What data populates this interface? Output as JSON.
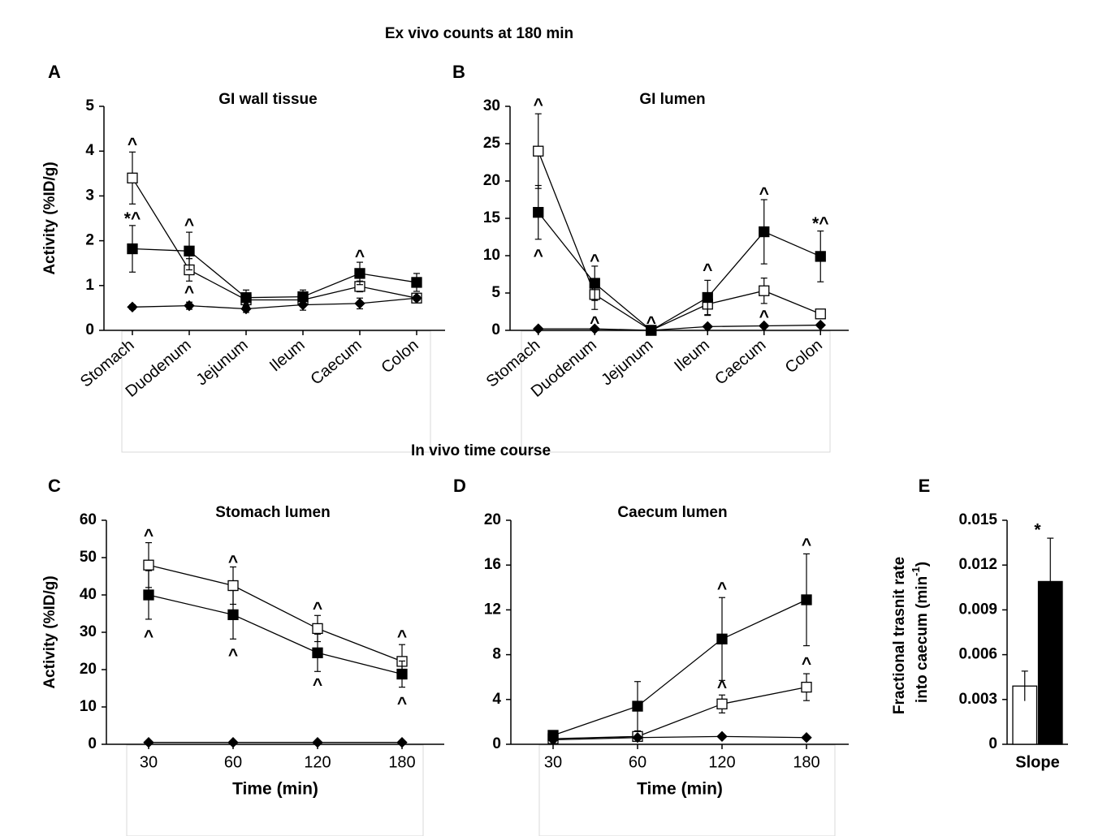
{
  "headers": [
    "Ex vivo counts at 180 min",
    "In vivo time course"
  ],
  "chart_data": [
    {
      "type": "line",
      "letter": "A",
      "title": "GI wall tissue",
      "ylabel": "Activity (%ID/g)",
      "categories": [
        "Stomach",
        "Duodenum",
        "Jejunum",
        "Ileum",
        "Caecum",
        "Colon"
      ],
      "xtick_rotation": -40,
      "ylim": [
        0,
        5
      ],
      "yticks": [
        0,
        1,
        2,
        3,
        4,
        5
      ],
      "series": [
        {
          "color": "#ffffff",
          "marker": "square",
          "values": [
            3.4,
            1.35,
            0.68,
            0.68,
            0.98,
            0.72
          ],
          "errors": [
            0.58,
            0.25,
            0.1,
            0.1,
            0.12,
            0.05
          ]
        },
        {
          "color": "#000000",
          "marker": "square",
          "values": [
            1.82,
            1.77,
            0.73,
            0.75,
            1.27,
            1.07
          ],
          "errors": [
            0.52,
            0.42,
            0.17,
            0.15,
            0.25,
            0.2
          ]
        },
        {
          "color": "#000000",
          "marker": "diamond",
          "values": [
            0.52,
            0.55,
            0.48,
            0.57,
            0.6,
            0.72
          ],
          "errors": [
            0.05,
            0.08,
            0.08,
            0.12,
            0.12,
            0.05
          ]
        }
      ],
      "annotations": [
        {
          "text": "^",
          "x": "Stomach",
          "y": 4.2
        },
        {
          "text": "*^",
          "x": "Stomach",
          "y": 2.55
        },
        {
          "text": "^",
          "x": "Duodenum",
          "y": 2.4
        },
        {
          "text": "^",
          "x": "Duodenum",
          "y": 0.9
        },
        {
          "text": "^",
          "x": "Jejunum",
          "y": 0.55
        },
        {
          "text": "^",
          "x": "Caecum",
          "y": 1.7
        }
      ]
    },
    {
      "type": "line",
      "letter": "B",
      "title": "GI lumen",
      "categories": [
        "Stomach",
        "Duodenum",
        "Jejunum",
        "Ileum",
        "Caecum",
        "Colon"
      ],
      "xtick_rotation": -40,
      "ylim": [
        0,
        30
      ],
      "yticks": [
        0,
        5,
        10,
        15,
        20,
        25,
        30
      ],
      "series": [
        {
          "color": "#ffffff",
          "marker": "square",
          "values": [
            24,
            4.8,
            0,
            3.5,
            5.3,
            2.2
          ],
          "errors": [
            5,
            2,
            0,
            1.5,
            1.7,
            0.6
          ]
        },
        {
          "color": "#000000",
          "marker": "square",
          "values": [
            15.8,
            6.3,
            0,
            4.4,
            13.2,
            9.9
          ],
          "errors": [
            3.6,
            2.3,
            0,
            2.3,
            4.3,
            3.4
          ]
        },
        {
          "color": "#000000",
          "marker": "diamond",
          "values": [
            0.2,
            0.2,
            0,
            0.5,
            0.6,
            0.7
          ]
        }
      ],
      "annotations": [
        {
          "text": "^",
          "x": "Stomach",
          "y": 30.5
        },
        {
          "text": "^",
          "x": "Stomach",
          "y": 10.3
        },
        {
          "text": "^",
          "x": "Duodenum",
          "y": 9.6
        },
        {
          "text": "^",
          "x": "Duodenum",
          "y": 1.3
        },
        {
          "text": "^",
          "x": "Jejunum",
          "y": 1.3
        },
        {
          "text": "^",
          "x": "Ileum",
          "y": 8.4
        },
        {
          "text": "^",
          "x": "Caecum",
          "y": 18.6
        },
        {
          "text": "^",
          "x": "Caecum",
          "y": 2.1
        },
        {
          "text": "*^",
          "x": "Colon",
          "y": 14.6
        }
      ]
    },
    {
      "type": "line",
      "letter": "C",
      "title": "Stomach lumen",
      "ylabel": "Activity (%ID/g)",
      "xlabel": "Time (min)",
      "categories": [
        "30",
        "60",
        "120",
        "180"
      ],
      "ylim": [
        0,
        60
      ],
      "yticks": [
        0,
        10,
        20,
        30,
        40,
        50,
        60
      ],
      "series": [
        {
          "color": "#ffffff",
          "marker": "square",
          "values": [
            48,
            42.5,
            31,
            22.2
          ],
          "errors": [
            6,
            5,
            3.5,
            4.5
          ]
        },
        {
          "color": "#000000",
          "marker": "square",
          "values": [
            40,
            34.7,
            24.5,
            18.8
          ],
          "errors": [
            6.5,
            6.5,
            5,
            3.5
          ]
        },
        {
          "color": "#000000",
          "marker": "diamond",
          "values": [
            0.5,
            0.5,
            0.5,
            0.5
          ]
        }
      ],
      "annotations": [
        {
          "text": "^",
          "x": "30",
          "y": 56.5
        },
        {
          "text": "^",
          "x": "30",
          "y": 29.5
        },
        {
          "text": "^",
          "x": "60",
          "y": 49.5
        },
        {
          "text": "^",
          "x": "60",
          "y": 24.5
        },
        {
          "text": "^",
          "x": "120",
          "y": 37
        },
        {
          "text": "^",
          "x": "120",
          "y": 16.5
        },
        {
          "text": "^",
          "x": "180",
          "y": 29.5
        },
        {
          "text": "^",
          "x": "180",
          "y": 11.5
        }
      ]
    },
    {
      "type": "line",
      "letter": "D",
      "title": "Caecum lumen",
      "xlabel": "Time (min)",
      "categories": [
        "30",
        "60",
        "120",
        "180"
      ],
      "ylim": [
        0,
        20
      ],
      "yticks": [
        0,
        4,
        8,
        12,
        16,
        20
      ],
      "series": [
        {
          "color": "#ffffff",
          "marker": "square",
          "values": [
            0.5,
            0.7,
            3.6,
            5.1
          ],
          "errors": [
            0,
            0.2,
            0.8,
            1.2
          ]
        },
        {
          "color": "#000000",
          "marker": "square",
          "values": [
            0.8,
            3.4,
            9.4,
            12.9
          ],
          "errors": [
            0.2,
            2.2,
            3.7,
            4.1
          ]
        },
        {
          "color": "#000000",
          "marker": "diamond",
          "values": [
            0.4,
            0.6,
            0.7,
            0.6
          ]
        }
      ],
      "annotations": [
        {
          "text": "^",
          "x": "120",
          "y": 14.1
        },
        {
          "text": "^",
          "x": "120",
          "y": 5.3
        },
        {
          "text": "^",
          "x": "180",
          "y": 18
        },
        {
          "text": "^",
          "x": "180",
          "y": 7.4
        }
      ]
    },
    {
      "type": "bar",
      "letter": "E",
      "ylabel": [
        "Fractional trasnit rate",
        "into caecum (min",
        "-1",
        ")"
      ],
      "categories": [
        "Slope"
      ],
      "ylim": [
        0,
        0.015
      ],
      "yticks": [
        0,
        0.003,
        0.006,
        0.009,
        0.012,
        0.015
      ],
      "series": [
        {
          "color": "#ffffff",
          "values": [
            0.0039
          ],
          "errors": [
            0.001
          ]
        },
        {
          "color": "#000000",
          "values": [
            0.0109
          ],
          "errors": [
            0.0029
          ]
        }
      ],
      "annotations": [
        {
          "text": "*",
          "x": "Slope",
          "y": 0.0145
        }
      ]
    }
  ]
}
